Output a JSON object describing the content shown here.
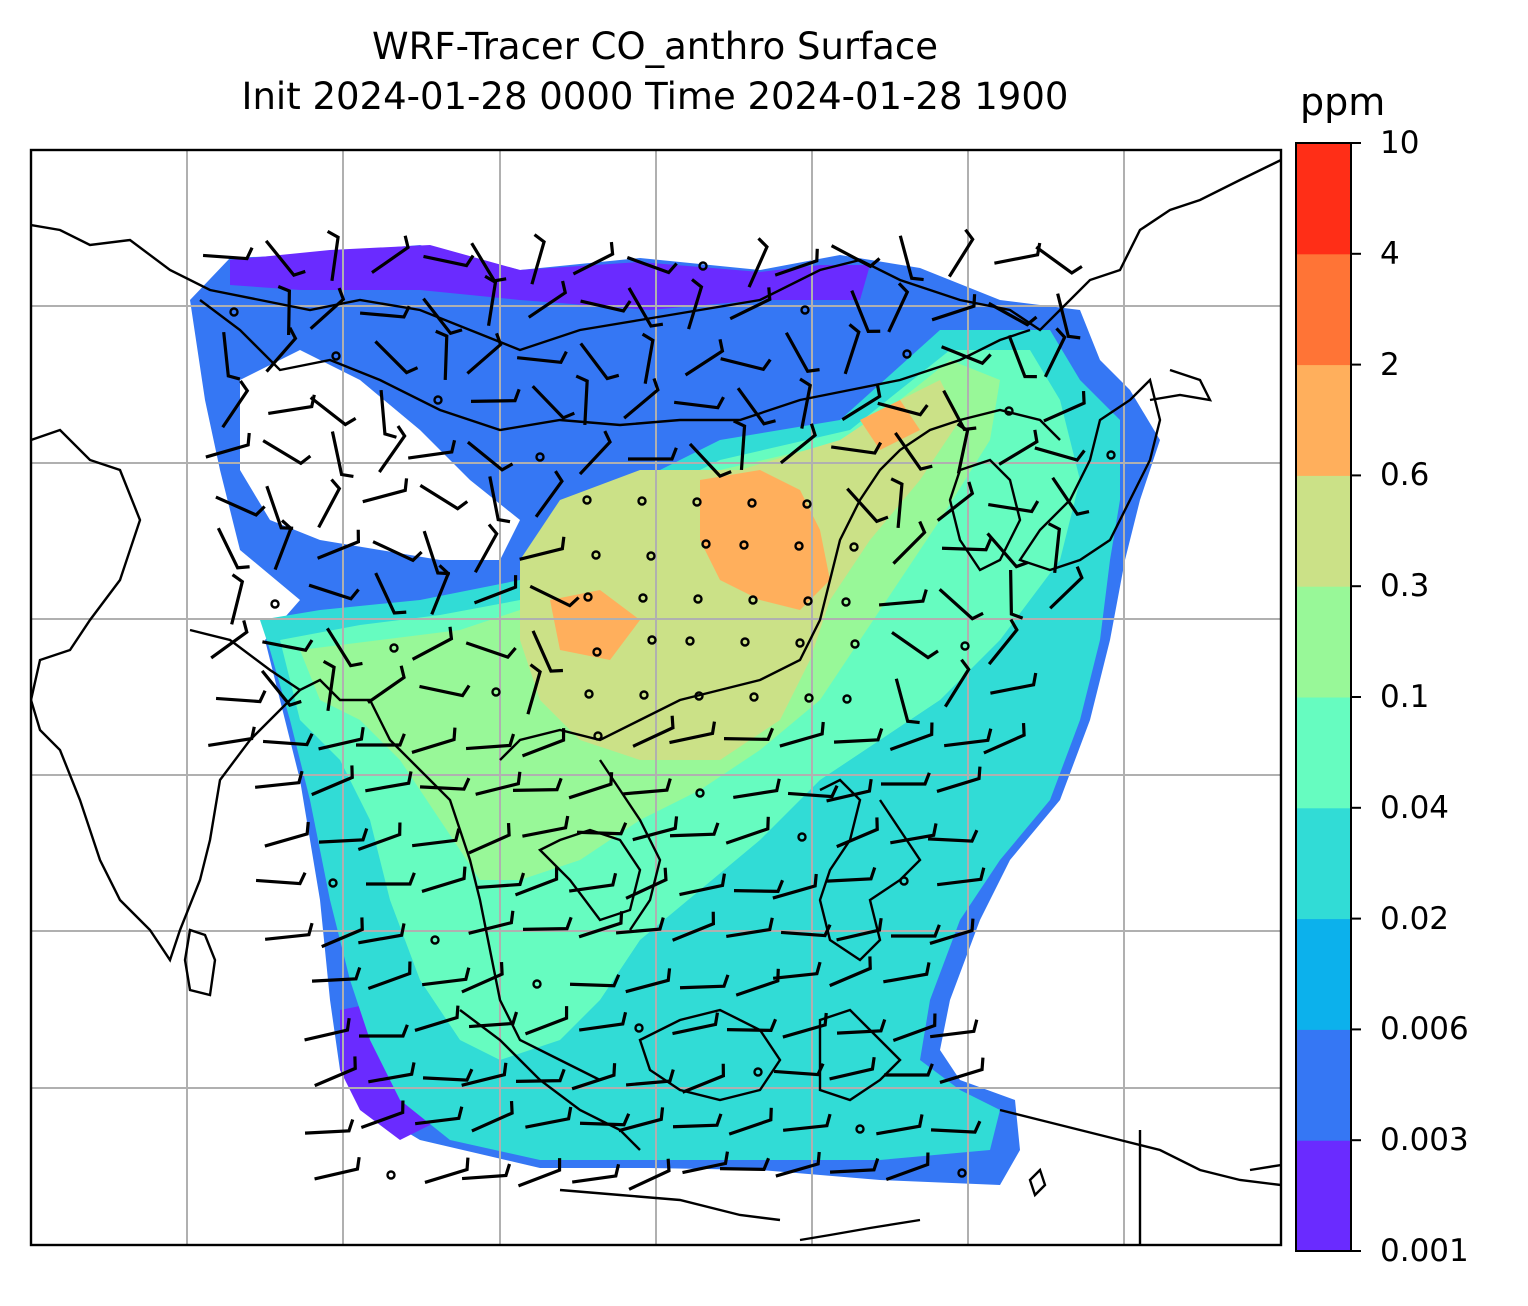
{
  "title": {
    "line1": "WRF-Tracer CO_anthro Surface",
    "line2": "Init 2024-01-28 0000 Time 2024-01-28 1900"
  },
  "colorbar": {
    "unit": "ppm",
    "levels": [
      "0.001",
      "0.003",
      "0.006",
      "0.02",
      "0.04",
      "0.1",
      "0.3",
      "0.6",
      "2",
      "4",
      "10"
    ],
    "colors": [
      "#6a2bff",
      "#3577f4",
      "#0cb1ec",
      "#31dcd6",
      "#66fcc0",
      "#98f898",
      "#cbe187",
      "#ffaf5c",
      "#ff7436",
      "#ff2e17"
    ]
  },
  "map": {
    "gridlines": true,
    "coastline_color": "#000000",
    "gridline_color": "#b0b0b0"
  }
}
